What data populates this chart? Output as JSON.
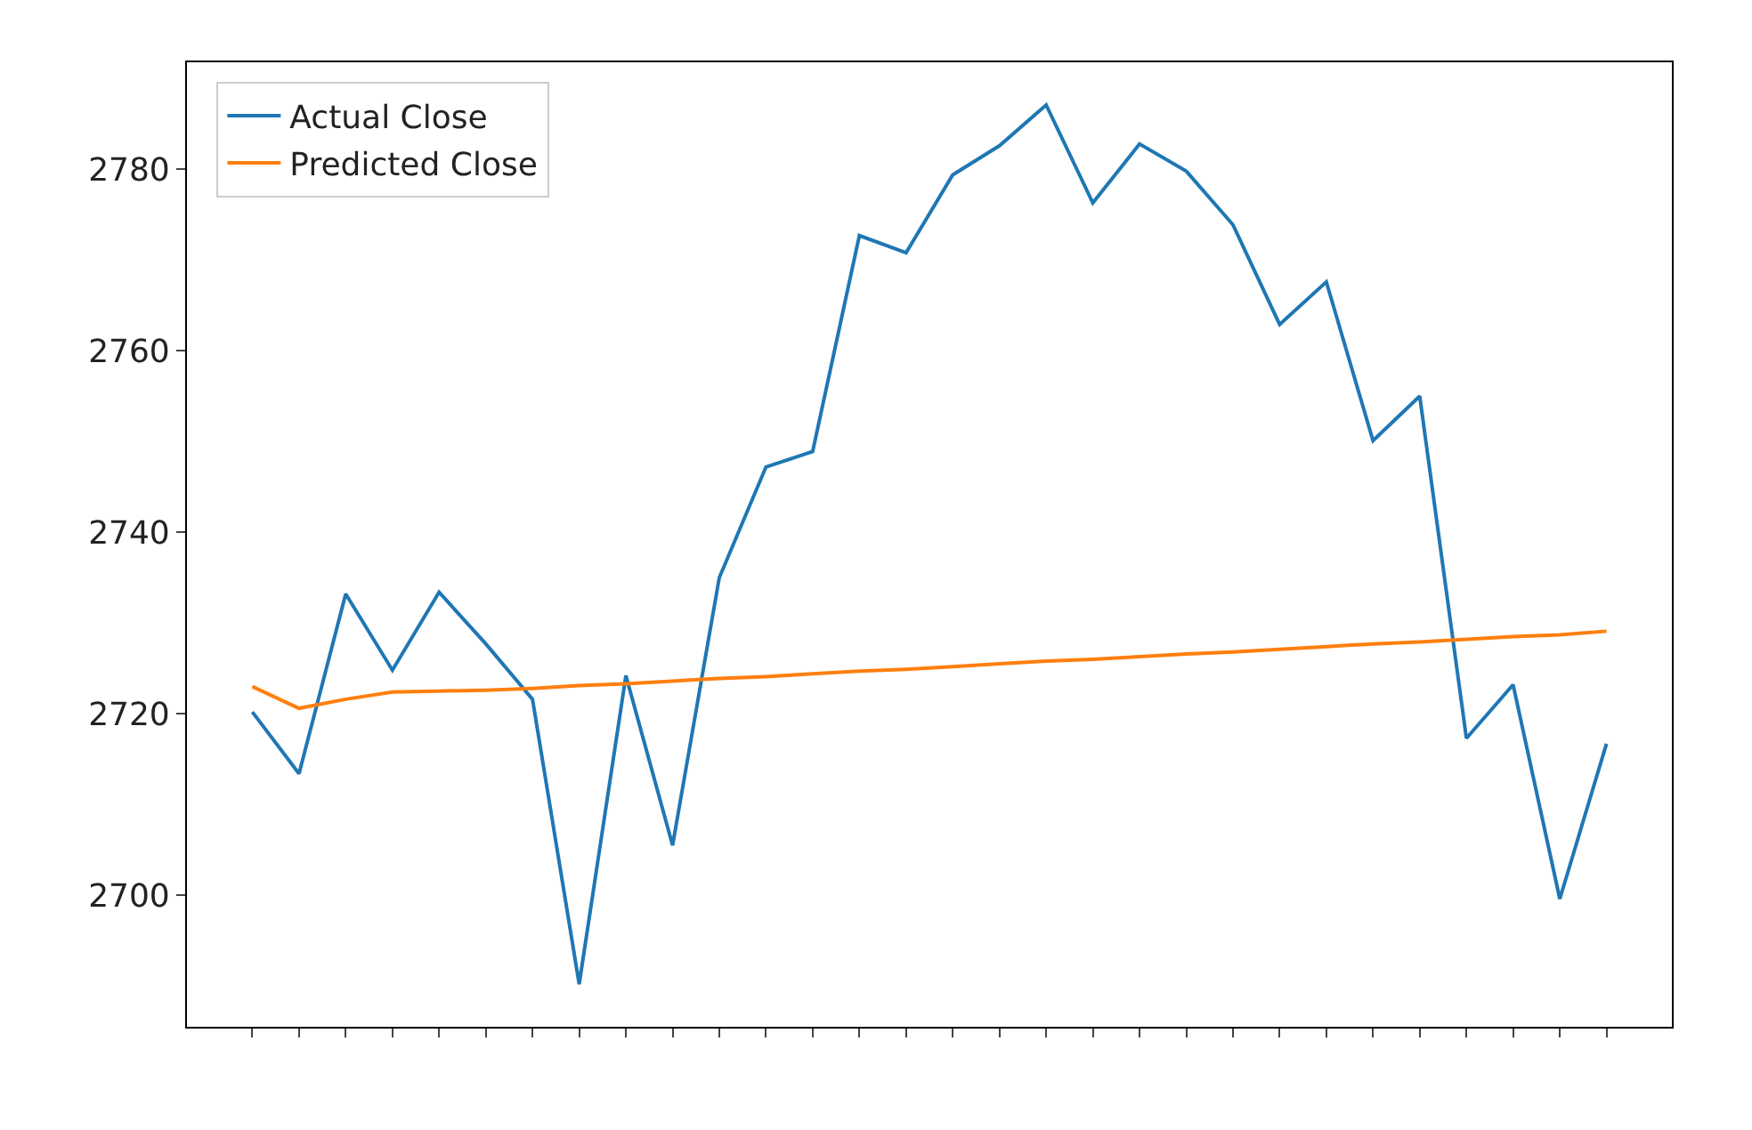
{
  "chart_data": {
    "type": "line",
    "categories": [
      null,
      null,
      null,
      null,
      null,
      null,
      null,
      null,
      null,
      null,
      null,
      null,
      null,
      null,
      null,
      null,
      null,
      null,
      null,
      null,
      null,
      null,
      null,
      null,
      null,
      null,
      null,
      null,
      null,
      null
    ],
    "series": [
      {
        "name": "Actual Close",
        "color": "#1f77b4",
        "values": [
          2720.2,
          2713.4,
          2733.2,
          2724.8,
          2733.4,
          2727.7,
          2721.6,
          2690.2,
          2724.2,
          2705.5,
          2735.0,
          2747.2,
          2748.9,
          2772.7,
          2770.8,
          2779.4,
          2782.6,
          2787.1,
          2776.3,
          2782.8,
          2779.8,
          2773.9,
          2762.9,
          2767.6,
          2750.1,
          2755.0,
          2717.3,
          2723.2,
          2699.6,
          2716.7
        ]
      },
      {
        "name": "Predicted Close",
        "color": "#ff7f0e",
        "values": [
          2723.0,
          2720.6,
          2721.6,
          2722.4,
          2722.5,
          2722.6,
          2722.8,
          2723.1,
          2723.3,
          2723.6,
          2723.9,
          2724.1,
          2724.4,
          2724.7,
          2724.9,
          2725.2,
          2725.5,
          2725.8,
          2726.0,
          2726.3,
          2726.6,
          2726.8,
          2727.1,
          2727.4,
          2727.7,
          2727.9,
          2728.2,
          2728.5,
          2728.7,
          2729.1
        ]
      }
    ],
    "ylim": [
      2685.5,
      2791.8
    ],
    "yticks": [
      2700,
      2720,
      2740,
      2760,
      2780
    ],
    "grid": false,
    "legend": "top left",
    "marker": "none",
    "line_style": "solid",
    "tick_labels": "y"
  }
}
